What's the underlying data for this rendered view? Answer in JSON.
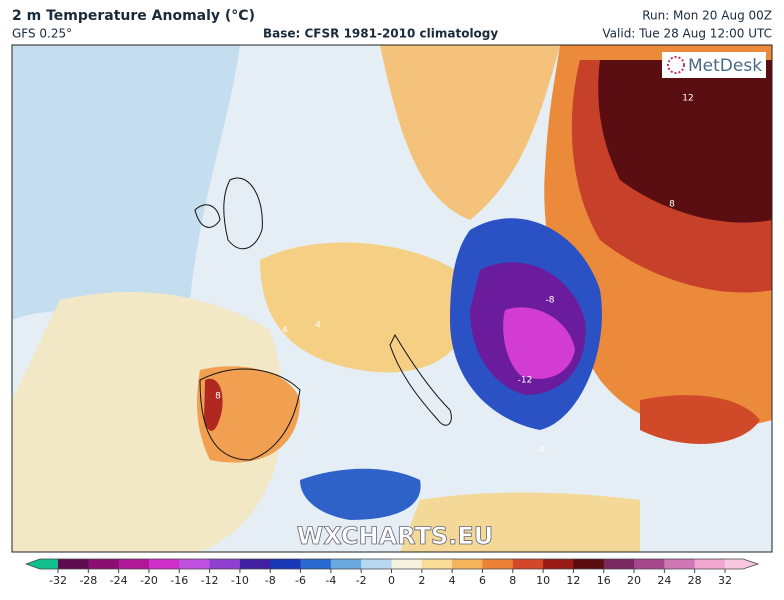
{
  "header": {
    "title": "2 m Temperature Anomaly (°C)",
    "model": "GFS 0.25°",
    "base": "Base: CFSR 1981-2010 climatology",
    "run": "Run: Mon 20 Aug 00Z",
    "valid": "Valid: Tue 28 Aug 12:00 UTC"
  },
  "map": {
    "logo": "MetDesk",
    "watermark": "WXCHARTS.EU",
    "contour_labels": [
      "-8",
      "-12",
      "8",
      "12",
      "8",
      "4",
      "-8",
      "4"
    ]
  },
  "colorbar": {
    "ticks": [
      -32,
      -28,
      -24,
      -20,
      -16,
      -12,
      -10,
      -8,
      -6,
      -4,
      -2,
      0,
      2,
      4,
      6,
      8,
      10,
      12,
      16,
      20,
      24,
      28,
      32
    ],
    "colors": [
      "#12c08e",
      "#5c0c4c",
      "#8a1070",
      "#b01898",
      "#d030c8",
      "#c050e0",
      "#9040d0",
      "#4020a0",
      "#1838b8",
      "#2a6ad0",
      "#6aa8e0",
      "#b8d8f0",
      "#f6f2e0",
      "#f8dc98",
      "#f4b45c",
      "#ec8236",
      "#d4482a",
      "#9a1c18",
      "#5a0c10",
      "#7a2860",
      "#a8488c",
      "#d078b4",
      "#f0a8d0",
      "#f8c8e0"
    ]
  }
}
